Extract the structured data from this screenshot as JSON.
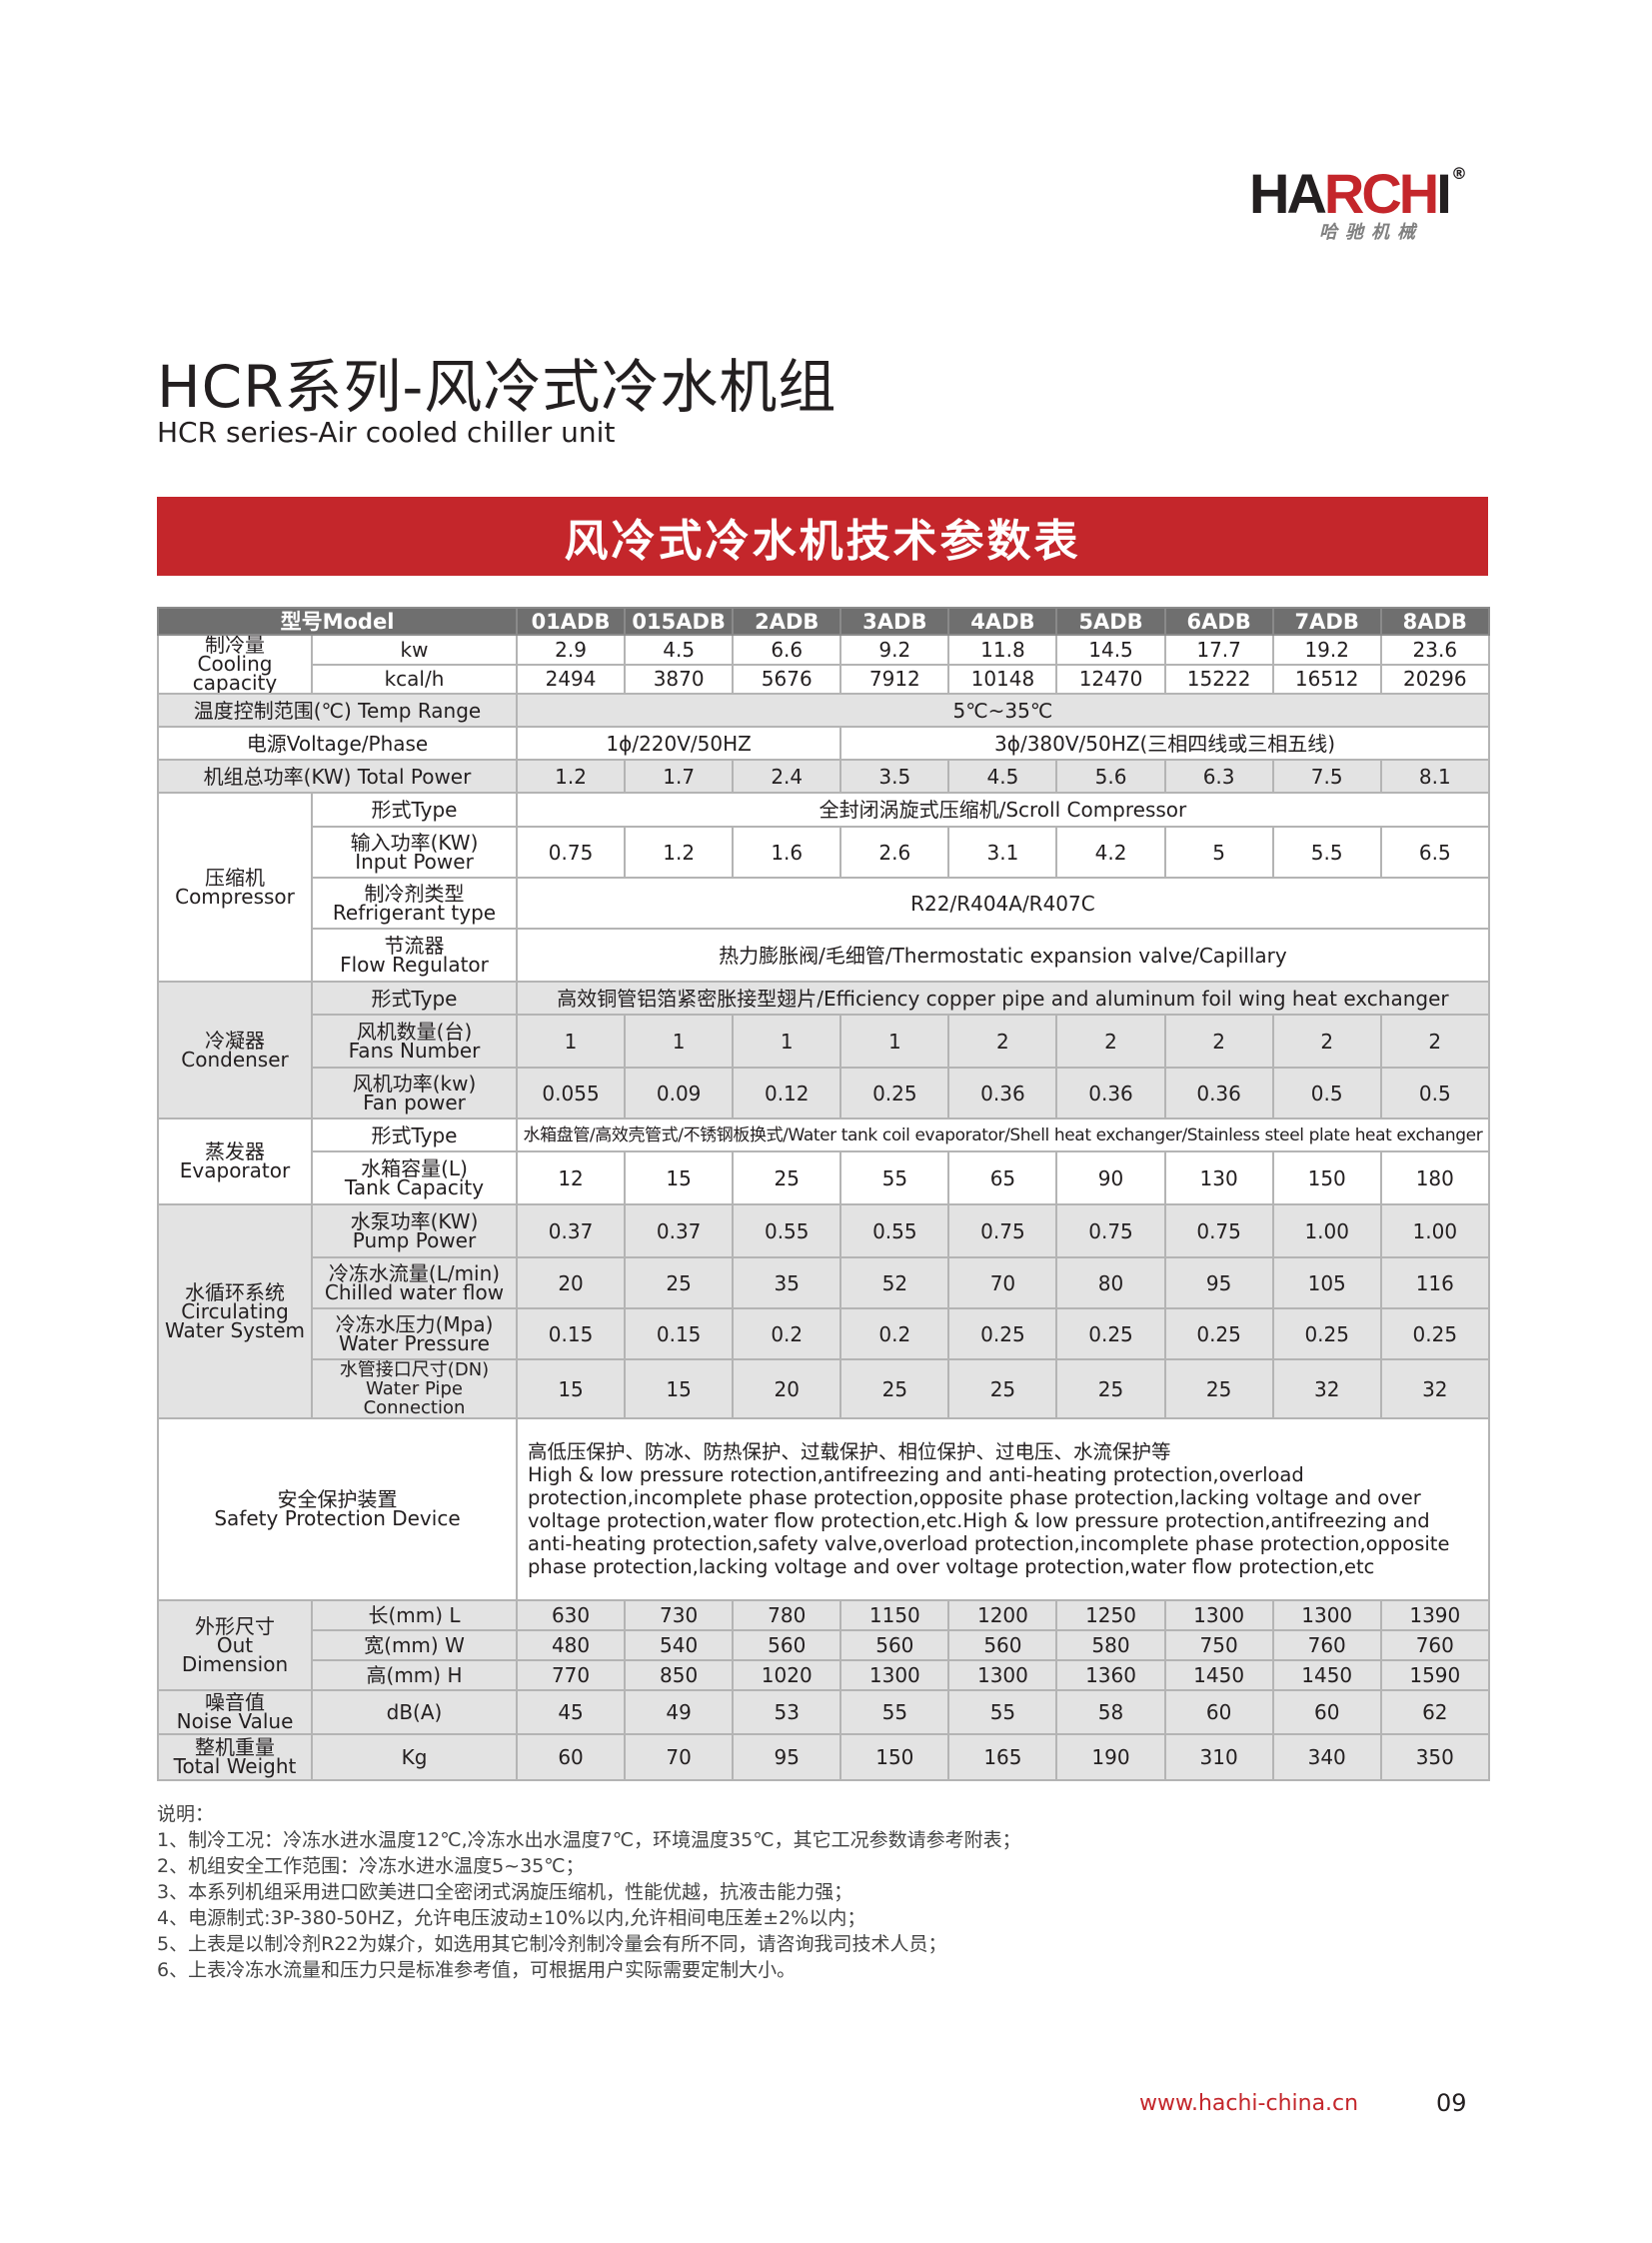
{
  "logo": {
    "text_black1": "HA",
    "text_red": "RCH",
    "text_black2": "I",
    "registered": "®",
    "chinese": "哈驰机械"
  },
  "title": "HCR系列-风冷式冷水机组",
  "subtitle": "HCR series-Air cooled chiller unit",
  "banner": "风冷式冷水机技术参数表",
  "colors": {
    "brand_red": "#c4262b",
    "header_gray": "#6f6f6f",
    "row_gray": "#e3e3e3"
  },
  "table": {
    "model_label": "型号Model",
    "models": [
      "01ADB",
      "015ADB",
      "2ADB",
      "3ADB",
      "4ADB",
      "5ADB",
      "6ADB",
      "7ADB",
      "8ADB"
    ],
    "cooling": {
      "cn": "制冷量",
      "en": "Cooling capacity",
      "kw": {
        "unit": "kw",
        "values": [
          "2.9",
          "4.5",
          "6.6",
          "9.2",
          "11.8",
          "14.5",
          "17.7",
          "19.2",
          "23.6"
        ]
      },
      "kcal": {
        "unit": "kcal/h",
        "values": [
          "2494",
          "3870",
          "5676",
          "7912",
          "10148",
          "12470",
          "15222",
          "16512",
          "20296"
        ]
      }
    },
    "temp_range": {
      "label": "温度控制范围(℃) Temp Range",
      "value": "5℃~35℃"
    },
    "voltage": {
      "label": "电源Voltage/Phase",
      "single": "1ϕ/220V/50HZ",
      "three": "3ϕ/380V/50HZ(三相四线或三相五线)"
    },
    "total_power": {
      "label": "机组总功率(KW) Total Power",
      "values": [
        "1.2",
        "1.7",
        "2.4",
        "3.5",
        "4.5",
        "5.6",
        "6.3",
        "7.5",
        "8.1"
      ]
    },
    "compressor": {
      "cn": "压缩机",
      "en": "Compressor",
      "type": {
        "label": "形式Type",
        "value": "全封闭涡旋式压缩机/Scroll Compressor"
      },
      "input_power": {
        "cn": "输入功率(KW)",
        "en": "Input Power",
        "values": [
          "0.75",
          "1.2",
          "1.6",
          "2.6",
          "3.1",
          "4.2",
          "5",
          "5.5",
          "6.5"
        ]
      },
      "refrigerant": {
        "cn": "制冷剂类型",
        "en": "Refrigerant type",
        "value": "R22/R404A/R407C"
      },
      "flow_regulator": {
        "cn": "节流器",
        "en": "Flow Regulator",
        "value": "热力膨胀阀/毛细管/Thermostatic expansion valve/Capillary"
      }
    },
    "condenser": {
      "cn": "冷凝器",
      "en": "Condenser",
      "type": {
        "label": "形式Type",
        "value": "高效铜管铝箔紧密胀接型翅片/Efficiency copper pipe and aluminum foil wing heat exchanger"
      },
      "fans": {
        "cn": "风机数量(台)",
        "en": "Fans Number",
        "values": [
          "1",
          "1",
          "1",
          "1",
          "2",
          "2",
          "2",
          "2",
          "2"
        ]
      },
      "fan_power": {
        "cn": "风机功率(kw)",
        "en": "Fan power",
        "values": [
          "0.055",
          "0.09",
          "0.12",
          "0.25",
          "0.36",
          "0.36",
          "0.36",
          "0.5",
          "0.5"
        ]
      }
    },
    "evaporator": {
      "cn": "蒸发器",
      "en": "Evaporator",
      "type": {
        "label": "形式Type",
        "value": "水箱盘管/高效壳管式/不锈钢板换式/Water tank coil evaporator/Shell heat exchanger/Stainless steel plate heat exchanger"
      },
      "tank": {
        "cn": "水箱容量(L)",
        "en": "Tank Capacity",
        "values": [
          "12",
          "15",
          "25",
          "55",
          "65",
          "90",
          "130",
          "150",
          "180"
        ]
      }
    },
    "water_system": {
      "cn": "水循环系统",
      "en1": "Circulating",
      "en2": "Water System",
      "pump": {
        "cn": "水泵功率(KW)",
        "en": "Pump Power",
        "values": [
          "0.37",
          "0.37",
          "0.55",
          "0.55",
          "0.75",
          "0.75",
          "0.75",
          "1.00",
          "1.00"
        ]
      },
      "flow": {
        "cn": "冷冻水流量(L/min)",
        "en": "Chilled water flow",
        "values": [
          "20",
          "25",
          "35",
          "52",
          "70",
          "80",
          "95",
          "105",
          "116"
        ]
      },
      "pressure": {
        "cn": "冷冻水压力(Mpa)",
        "en": "Water Pressure",
        "values": [
          "0.15",
          "0.15",
          "0.2",
          "0.2",
          "0.25",
          "0.25",
          "0.25",
          "0.25",
          "0.25"
        ]
      },
      "pipe": {
        "cn": "水管接口尺寸(DN)",
        "en": "Water Pipe Connection",
        "values": [
          "15",
          "15",
          "20",
          "25",
          "25",
          "25",
          "25",
          "32",
          "32"
        ]
      }
    },
    "safety": {
      "cn": "安全保护装置",
      "en": "Safety Protection Device",
      "text_cn": "高低压保护、防冰、防热保护、过载保护、相位保护、过电压、水流保护等",
      "text_en": "High & low pressure rotection,antifreezing and anti-heating protection,overload protection,incomplete phase protection,opposite phase protection,lacking voltage and over voltage protection,water flow protection,etc.High & low pressure protection,antifreezing and anti-heating protection,safety valve,overload protection,incomplete phase protection,opposite phase protection,lacking voltage and over voltage protection,water flow protection,etc"
    },
    "dimension": {
      "cn": "外形尺寸",
      "en": "Out Dimension",
      "length": {
        "label": "长(mm)  L",
        "values": [
          "630",
          "730",
          "780",
          "1150",
          "1200",
          "1250",
          "1300",
          "1300",
          "1390"
        ]
      },
      "width": {
        "label": "宽(mm)  W",
        "values": [
          "480",
          "540",
          "560",
          "560",
          "560",
          "580",
          "750",
          "760",
          "760"
        ]
      },
      "height": {
        "label": "高(mm)  H",
        "values": [
          "770",
          "850",
          "1020",
          "1300",
          "1300",
          "1360",
          "1450",
          "1450",
          "1590"
        ]
      }
    },
    "noise": {
      "cn": "噪音值",
      "en": "Noise Value",
      "unit": "dB(A)",
      "values": [
        "45",
        "49",
        "53",
        "55",
        "55",
        "58",
        "60",
        "60",
        "62"
      ]
    },
    "weight": {
      "cn": "整机重量",
      "en": "Total Weight",
      "unit": "Kg",
      "values": [
        "60",
        "70",
        "95",
        "150",
        "165",
        "190",
        "310",
        "340",
        "350"
      ]
    }
  },
  "notes": {
    "heading": "说明：",
    "items": [
      "1、制冷工况：冷冻水进水温度12℃,冷冻水出水温度7℃，环境温度35℃，其它工况参数请参考附表；",
      "2、机组安全工作范围：冷冻水进水温度5~35℃；",
      "3、本系列机组采用进口欧美进口全密闭式涡旋压缩机，性能优越，抗液击能力强；",
      "4、电源制式:3P-380-50HZ，允许电压波动±10%以内,允许相间电压差±2%以内；",
      "5、上表是以制冷剂R22为媒介，如选用其它制冷剂制冷量会有所不同，请咨询我司技术人员；",
      "6、上表冷冻水流量和压力只是标准参考值，可根据用户实际需要定制大小。"
    ]
  },
  "footer": {
    "url": "www.hachi-china.cn",
    "page": "09"
  }
}
